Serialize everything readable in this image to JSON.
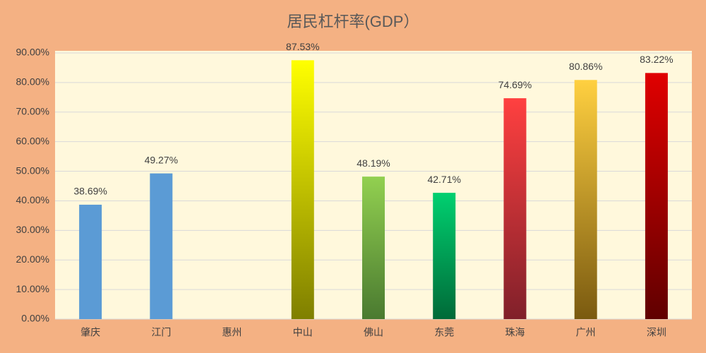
{
  "chart_data": {
    "type": "bar",
    "title": "居民杠杆率(GDP）",
    "categories": [
      "肇庆",
      "江门",
      "惠州",
      "中山",
      "佛山",
      "东莞",
      "珠海",
      "广州",
      "深圳"
    ],
    "values": [
      38.69,
      49.27,
      null,
      87.53,
      48.19,
      42.71,
      74.69,
      80.86,
      83.22
    ],
    "value_labels": [
      "38.69%",
      "49.27%",
      null,
      "87.53%",
      "48.19%",
      "42.71%",
      "74.69%",
      "80.86%",
      "83.22%"
    ],
    "colors": [
      "#5b9bd5",
      "#5b9bd5",
      null,
      "#ffff00",
      "#92d050",
      "#00d070",
      "#ff4040",
      "#ffd040",
      "#e00000"
    ],
    "gradient_bottom_colors": [
      null,
      null,
      null,
      "#7f7f00",
      "#4a7a30",
      "#006a38",
      "#80202a",
      "#7a5a10",
      "#600000"
    ],
    "ylim": [
      0,
      90
    ],
    "yticks": [
      {
        "value": 0,
        "label": "0.00%"
      },
      {
        "value": 10,
        "label": "10.00%"
      },
      {
        "value": 20,
        "label": "20.00%"
      },
      {
        "value": 30,
        "label": "30.00%"
      },
      {
        "value": 40,
        "label": "40.00%"
      },
      {
        "value": 50,
        "label": "50.00%"
      },
      {
        "value": 60,
        "label": "60.00%"
      },
      {
        "value": 70,
        "label": "70.00%"
      },
      {
        "value": 80,
        "label": "80.00%"
      },
      {
        "value": 90,
        "label": "90.00%"
      }
    ],
    "grid": true
  }
}
